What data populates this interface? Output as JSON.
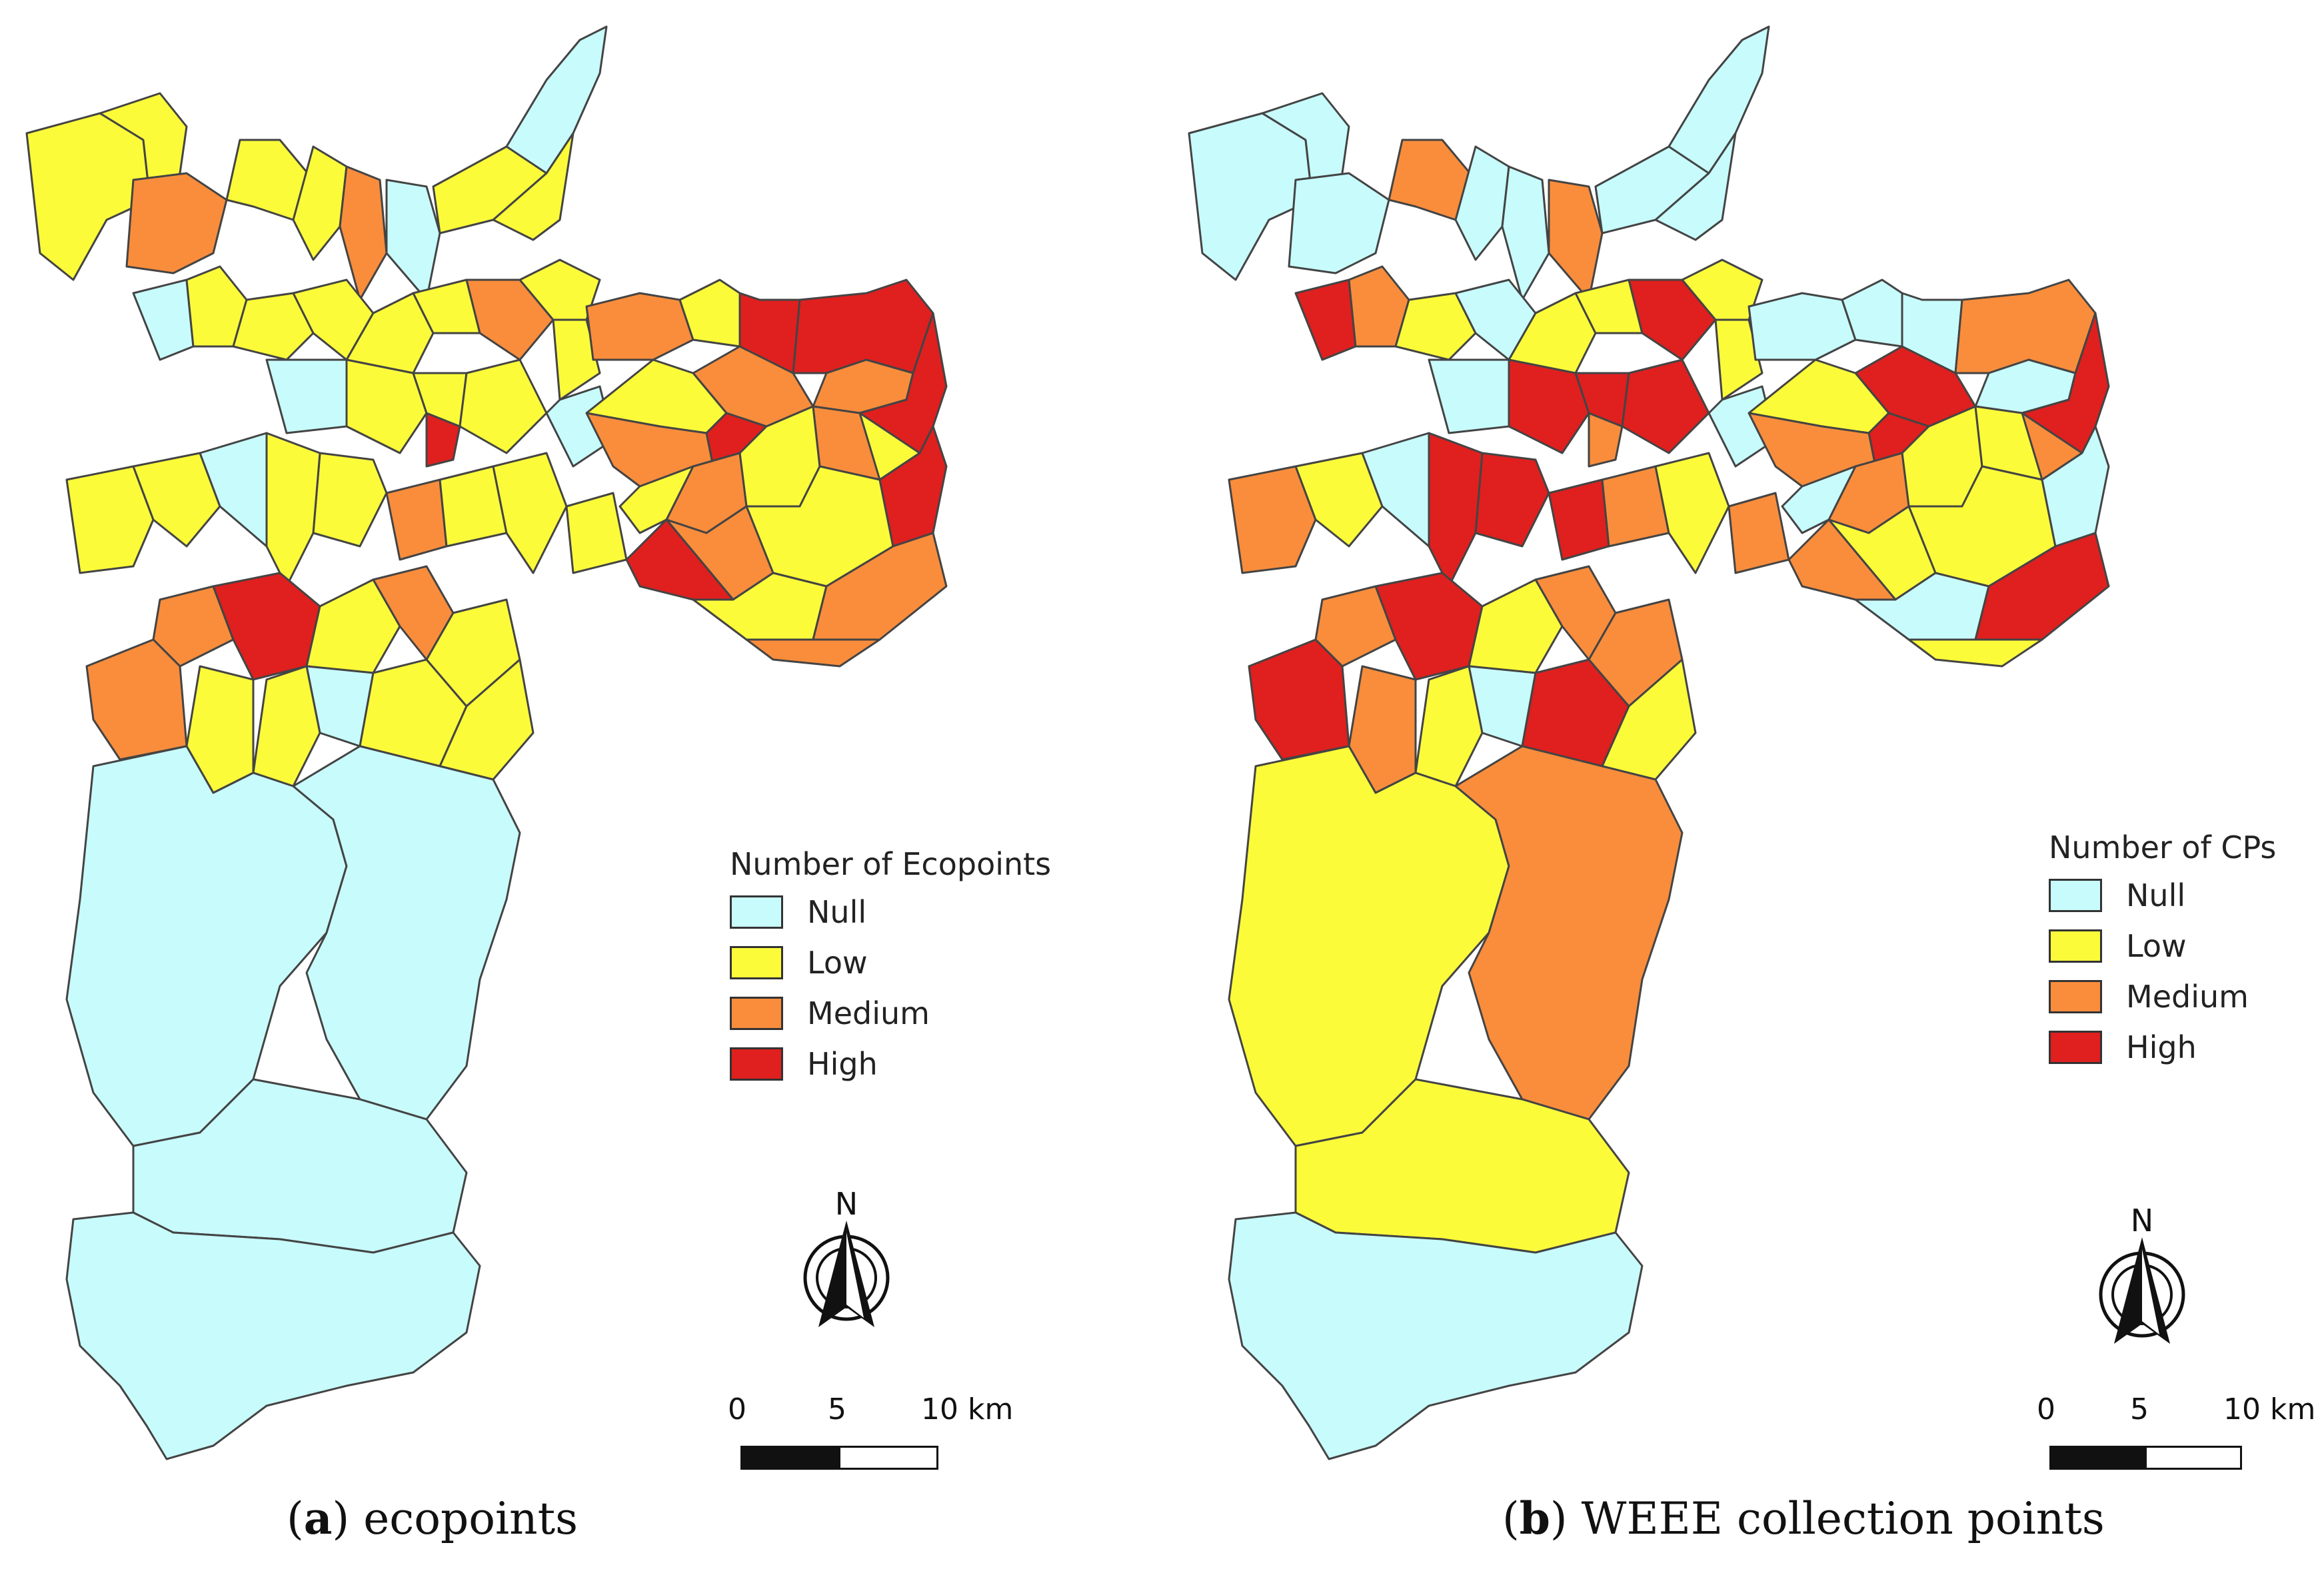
{
  "colors": {
    "null": "#c8fbfc",
    "low": "#fbfb3a",
    "medium": "#f98d3c",
    "high": "#e01f1f",
    "border": "#444444"
  },
  "panels": [
    {
      "legend_title": "Number of Ecopoints",
      "legend": [
        {
          "label": "Null",
          "key": "null"
        },
        {
          "label": "Low",
          "key": "low"
        },
        {
          "label": "Medium",
          "key": "medium"
        },
        {
          "label": "High",
          "key": "high"
        }
      ],
      "north_label": "N",
      "scale": {
        "t0": "0",
        "t1": "5",
        "t2": "10 km"
      },
      "caption_letter": "a",
      "caption_open": "(",
      "caption_text": ") ecopoints"
    },
    {
      "legend_title": "Number of CPs",
      "legend": [
        {
          "label": "Null",
          "key": "null"
        },
        {
          "label": "Low",
          "key": "low"
        },
        {
          "label": "Medium",
          "key": "medium"
        },
        {
          "label": "High",
          "key": "high"
        }
      ],
      "north_label": "N",
      "scale": {
        "t0": "0",
        "t1": "5",
        "t2": "10 km"
      },
      "caption_letter": "b",
      "caption_open": "(",
      "caption_text": ") WEEE collection points"
    }
  ],
  "region_categories": {
    "a": {
      "north": [
        "low",
        "low",
        "medium",
        "low",
        "low",
        "medium",
        "null",
        "low",
        "null",
        "low"
      ],
      "center": [
        "null",
        "low",
        "low",
        "low",
        "low",
        "low",
        "medium",
        "low",
        "low",
        "high",
        "null",
        "low",
        "low",
        "low",
        "null",
        "medium",
        "low",
        "low",
        "low",
        "low"
      ],
      "east": [
        "medium",
        "low",
        "high",
        "high",
        "medium",
        "medium",
        "low",
        "high",
        "medium",
        "low",
        "low",
        "medium",
        "high",
        "medium",
        "low",
        "low",
        "medium",
        "high",
        "high",
        "low",
        "medium",
        "medium"
      ],
      "west": [
        "low",
        "low",
        "null",
        "low",
        "medium",
        "high",
        "low",
        "medium",
        "null",
        "low",
        "low",
        "low",
        "low",
        "medium",
        "low"
      ],
      "south": [
        "null",
        "null",
        "null",
        "null"
      ]
    },
    "b": {
      "north": [
        "null",
        "null",
        "null",
        "medium",
        "null",
        "null",
        "medium",
        "null",
        "null",
        "null"
      ],
      "center": [
        "high",
        "medium",
        "low",
        "null",
        "low",
        "low",
        "high",
        "low",
        "low",
        "medium",
        "null",
        "high",
        "high",
        "high",
        "null",
        "high",
        "medium",
        "low",
        "medium",
        "high"
      ],
      "east": [
        "null",
        "null",
        "null",
        "medium",
        "null",
        "high",
        "low",
        "high",
        "medium",
        "low",
        "medium",
        "low",
        "high",
        "medium",
        "null",
        "low",
        "low",
        "medium",
        "null",
        "null",
        "high",
        "low"
      ],
      "west": [
        "medium",
        "low",
        "null",
        "high",
        "medium",
        "high",
        "low",
        "medium",
        "null",
        "high",
        "medium",
        "low",
        "medium",
        "high",
        "low"
      ],
      "south": [
        "low",
        "medium",
        "low",
        "null"
      ]
    }
  }
}
